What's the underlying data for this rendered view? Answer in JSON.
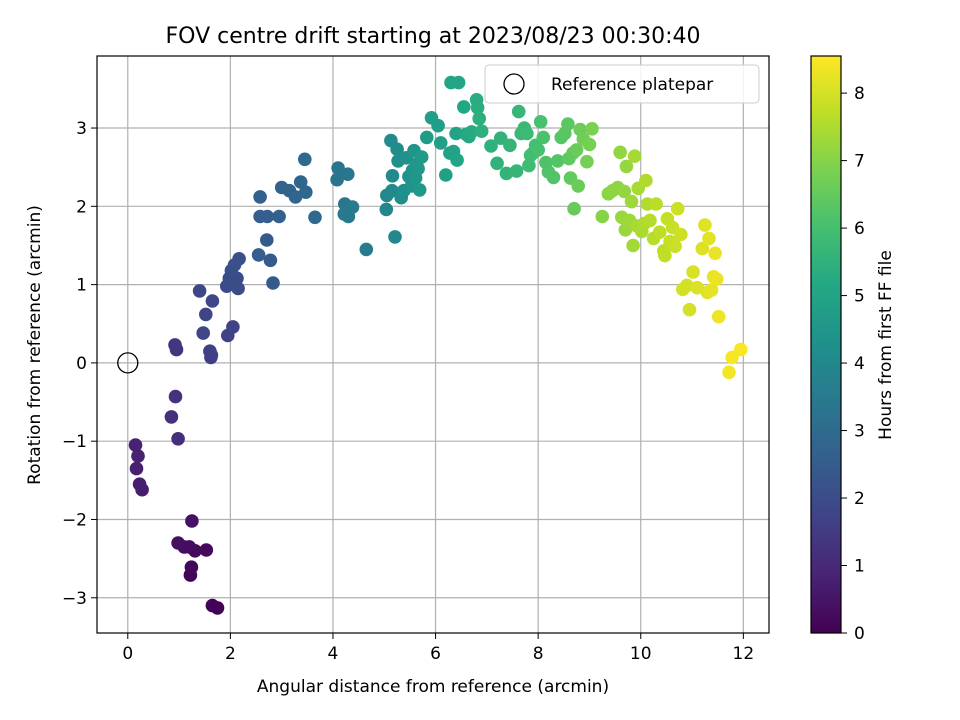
{
  "chart_data": {
    "type": "scatter",
    "title": "FOV centre drift starting at 2023/08/23 00:30:40",
    "xlabel": "Angular distance from reference (arcmin)",
    "ylabel": "Rotation from reference (arcmin)",
    "colorbar_label": "Hours from first FF file",
    "xlim": [
      -0.6,
      12.5
    ],
    "ylim": [
      -3.45,
      3.92
    ],
    "clim": [
      0,
      8.55
    ],
    "xticks": [
      0,
      2,
      4,
      6,
      8,
      10,
      12
    ],
    "yticks": [
      -3,
      -2,
      -1,
      0,
      1,
      2,
      3
    ],
    "cticks": [
      0,
      1,
      2,
      3,
      4,
      5,
      6,
      7,
      8
    ],
    "grid": true,
    "legend": {
      "placement": "top-right",
      "label": "Reference platepar"
    },
    "reference_point": {
      "x": 0,
      "y": 0
    },
    "colormap": "viridis",
    "points": [
      [
        1.75,
        -3.13,
        0.02
      ],
      [
        1.65,
        -3.1,
        0.05
      ],
      [
        1.22,
        -2.71,
        0.1
      ],
      [
        1.24,
        -2.61,
        0.14
      ],
      [
        1.53,
        -2.39,
        0.18
      ],
      [
        1.31,
        -2.4,
        0.22
      ],
      [
        1.2,
        -2.35,
        0.26
      ],
      [
        1.1,
        -2.35,
        0.3
      ],
      [
        0.98,
        -2.3,
        0.35
      ],
      [
        1.25,
        -2.02,
        0.4
      ],
      [
        0.28,
        -1.62,
        0.7
      ],
      [
        0.23,
        -1.55,
        0.74
      ],
      [
        0.17,
        -1.35,
        0.78
      ],
      [
        0.2,
        -1.19,
        0.82
      ],
      [
        0.15,
        -1.05,
        0.86
      ],
      [
        0.98,
        -0.97,
        1.15
      ],
      [
        0.85,
        -0.69,
        1.2
      ],
      [
        0.93,
        -0.43,
        1.25
      ],
      [
        0.95,
        0.17,
        1.32
      ],
      [
        0.92,
        0.23,
        1.36
      ],
      [
        1.62,
        0.07,
        1.6
      ],
      [
        1.63,
        0.1,
        1.62
      ],
      [
        1.6,
        0.15,
        1.64
      ],
      [
        1.95,
        0.35,
        1.68
      ],
      [
        2.05,
        0.46,
        1.72
      ],
      [
        1.47,
        0.38,
        1.76
      ],
      [
        1.52,
        0.62,
        1.8
      ],
      [
        1.65,
        0.79,
        1.84
      ],
      [
        1.4,
        0.92,
        1.88
      ],
      [
        1.93,
        0.98,
        1.95
      ],
      [
        2.15,
        0.95,
        1.98
      ],
      [
        2.13,
        1.08,
        2.01
      ],
      [
        1.98,
        1.08,
        2.04
      ],
      [
        2.02,
        1.18,
        2.07
      ],
      [
        2.08,
        1.25,
        2.1
      ],
      [
        2.17,
        1.33,
        2.13
      ],
      [
        2.83,
        1.02,
        2.4
      ],
      [
        2.78,
        1.31,
        2.44
      ],
      [
        2.71,
        1.57,
        2.48
      ],
      [
        2.55,
        1.38,
        2.52
      ],
      [
        2.58,
        1.87,
        2.56
      ],
      [
        2.72,
        1.87,
        2.6
      ],
      [
        2.95,
        1.87,
        2.64
      ],
      [
        2.58,
        2.12,
        2.68
      ],
      [
        3.0,
        2.24,
        2.72
      ],
      [
        3.15,
        2.2,
        2.76
      ],
      [
        3.27,
        2.12,
        2.8
      ],
      [
        3.37,
        2.31,
        2.84
      ],
      [
        3.47,
        2.18,
        2.88
      ],
      [
        3.45,
        2.6,
        2.92
      ],
      [
        3.65,
        1.86,
        2.96
      ],
      [
        4.08,
        2.34,
        3.3
      ],
      [
        4.1,
        2.49,
        3.33
      ],
      [
        4.23,
        2.03,
        3.36
      ],
      [
        4.29,
        2.41,
        3.39
      ],
      [
        4.22,
        1.9,
        3.42
      ],
      [
        4.3,
        1.87,
        3.45
      ],
      [
        4.38,
        1.99,
        3.48
      ],
      [
        4.65,
        1.45,
        3.56
      ],
      [
        5.04,
        1.96,
        3.9
      ],
      [
        5.21,
        1.61,
        3.95
      ],
      [
        5.05,
        2.14,
        3.98
      ],
      [
        5.15,
        2.2,
        4.02
      ],
      [
        5.16,
        2.39,
        4.06
      ],
      [
        5.13,
        2.84,
        4.1
      ],
      [
        5.25,
        2.73,
        4.14
      ],
      [
        5.27,
        2.58,
        4.18
      ],
      [
        5.33,
        2.11,
        4.22
      ],
      [
        5.38,
        2.2,
        4.26
      ],
      [
        5.43,
        2.62,
        4.3
      ],
      [
        5.48,
        2.38,
        4.34
      ],
      [
        5.53,
        2.26,
        4.38
      ],
      [
        5.55,
        2.46,
        4.42
      ],
      [
        5.58,
        2.71,
        4.46
      ],
      [
        5.61,
        2.36,
        4.5
      ],
      [
        5.63,
        2.54,
        4.54
      ],
      [
        5.66,
        2.48,
        4.58
      ],
      [
        5.69,
        2.21,
        4.62
      ],
      [
        5.73,
        2.63,
        4.66
      ],
      [
        5.83,
        2.88,
        4.7
      ],
      [
        5.92,
        3.13,
        4.74
      ],
      [
        6.05,
        3.03,
        4.78
      ],
      [
        6.1,
        2.81,
        4.82
      ],
      [
        6.2,
        2.4,
        4.86
      ],
      [
        6.28,
        2.68,
        4.9
      ],
      [
        6.35,
        2.7,
        4.94
      ],
      [
        6.4,
        2.93,
        4.98
      ],
      [
        6.42,
        2.59,
        5.02
      ],
      [
        6.3,
        3.58,
        5.06
      ],
      [
        6.45,
        3.58,
        5.1
      ],
      [
        6.55,
        3.27,
        5.14
      ],
      [
        6.6,
        2.92,
        5.18
      ],
      [
        6.65,
        2.89,
        5.22
      ],
      [
        6.7,
        2.95,
        5.26
      ],
      [
        6.8,
        3.36,
        5.3
      ],
      [
        6.82,
        3.26,
        5.34
      ],
      [
        6.85,
        3.12,
        5.38
      ],
      [
        6.9,
        2.96,
        5.42
      ],
      [
        7.08,
        2.77,
        5.46
      ],
      [
        7.2,
        2.55,
        5.5
      ],
      [
        7.27,
        2.87,
        5.54
      ],
      [
        7.38,
        2.42,
        5.58
      ],
      [
        7.45,
        2.78,
        5.62
      ],
      [
        7.58,
        2.45,
        5.66
      ],
      [
        7.62,
        3.21,
        5.7
      ],
      [
        7.67,
        2.93,
        5.74
      ],
      [
        7.73,
        3.0,
        5.78
      ],
      [
        7.78,
        2.93,
        5.82
      ],
      [
        7.82,
        2.52,
        5.86
      ],
      [
        7.85,
        2.65,
        5.9
      ],
      [
        7.9,
        2.68,
        5.94
      ],
      [
        7.95,
        2.78,
        5.98
      ],
      [
        8.0,
        2.72,
        6.02
      ],
      [
        8.05,
        3.08,
        6.06
      ],
      [
        8.1,
        2.88,
        6.1
      ],
      [
        8.15,
        2.56,
        6.14
      ],
      [
        8.2,
        2.44,
        6.18
      ],
      [
        8.3,
        2.37,
        6.22
      ],
      [
        8.38,
        2.58,
        6.26
      ],
      [
        8.45,
        2.88,
        6.3
      ],
      [
        8.52,
        2.93,
        6.34
      ],
      [
        8.58,
        3.05,
        6.38
      ],
      [
        8.6,
        2.61,
        6.42
      ],
      [
        8.63,
        2.36,
        6.46
      ],
      [
        8.68,
        2.68,
        6.5
      ],
      [
        8.7,
        1.97,
        6.54
      ],
      [
        8.75,
        2.72,
        6.58
      ],
      [
        8.78,
        2.26,
        6.62
      ],
      [
        8.82,
        2.98,
        6.66
      ],
      [
        8.88,
        2.86,
        6.7
      ],
      [
        8.95,
        2.57,
        6.74
      ],
      [
        9.0,
        2.79,
        6.78
      ],
      [
        9.05,
        2.99,
        6.82
      ],
      [
        9.25,
        1.87,
        7.0
      ],
      [
        9.37,
        2.16,
        7.05
      ],
      [
        9.45,
        2.2,
        7.08
      ],
      [
        9.55,
        2.24,
        7.11
      ],
      [
        9.6,
        2.69,
        7.14
      ],
      [
        9.68,
        2.19,
        7.17
      ],
      [
        9.72,
        2.51,
        7.2
      ],
      [
        9.63,
        1.86,
        7.23
      ],
      [
        9.7,
        1.7,
        7.26
      ],
      [
        9.78,
        1.82,
        7.29
      ],
      [
        9.82,
        2.06,
        7.32
      ],
      [
        9.85,
        1.5,
        7.35
      ],
      [
        9.88,
        2.64,
        7.38
      ],
      [
        9.92,
        1.75,
        7.41
      ],
      [
        9.95,
        2.23,
        7.44
      ],
      [
        10.02,
        1.68,
        7.47
      ],
      [
        10.07,
        1.78,
        7.5
      ],
      [
        10.1,
        2.33,
        7.53
      ],
      [
        10.13,
        2.03,
        7.56
      ],
      [
        10.18,
        1.82,
        7.59
      ],
      [
        10.25,
        1.59,
        7.62
      ],
      [
        10.3,
        2.03,
        7.65
      ],
      [
        10.37,
        1.67,
        7.68
      ],
      [
        10.45,
        1.43,
        7.71
      ],
      [
        10.47,
        1.37,
        7.74
      ],
      [
        10.52,
        1.84,
        7.77
      ],
      [
        10.57,
        1.55,
        7.8
      ],
      [
        10.62,
        1.73,
        7.83
      ],
      [
        10.67,
        1.49,
        7.86
      ],
      [
        10.72,
        1.97,
        7.89
      ],
      [
        10.78,
        1.64,
        7.92
      ],
      [
        10.82,
        0.94,
        7.95
      ],
      [
        10.9,
        0.99,
        7.98
      ],
      [
        10.95,
        0.68,
        8.01
      ],
      [
        11.02,
        1.16,
        8.04
      ],
      [
        11.1,
        0.96,
        8.07
      ],
      [
        11.2,
        1.46,
        8.1
      ],
      [
        11.25,
        1.76,
        8.13
      ],
      [
        11.3,
        0.9,
        8.16
      ],
      [
        11.33,
        1.59,
        8.19
      ],
      [
        11.38,
        0.93,
        8.22
      ],
      [
        11.42,
        1.1,
        8.25
      ],
      [
        11.45,
        1.4,
        8.28
      ],
      [
        11.48,
        1.07,
        8.31
      ],
      [
        11.52,
        0.59,
        8.34
      ],
      [
        11.72,
        -0.12,
        8.42
      ],
      [
        11.78,
        0.07,
        8.46
      ],
      [
        11.95,
        0.17,
        8.5
      ]
    ]
  }
}
